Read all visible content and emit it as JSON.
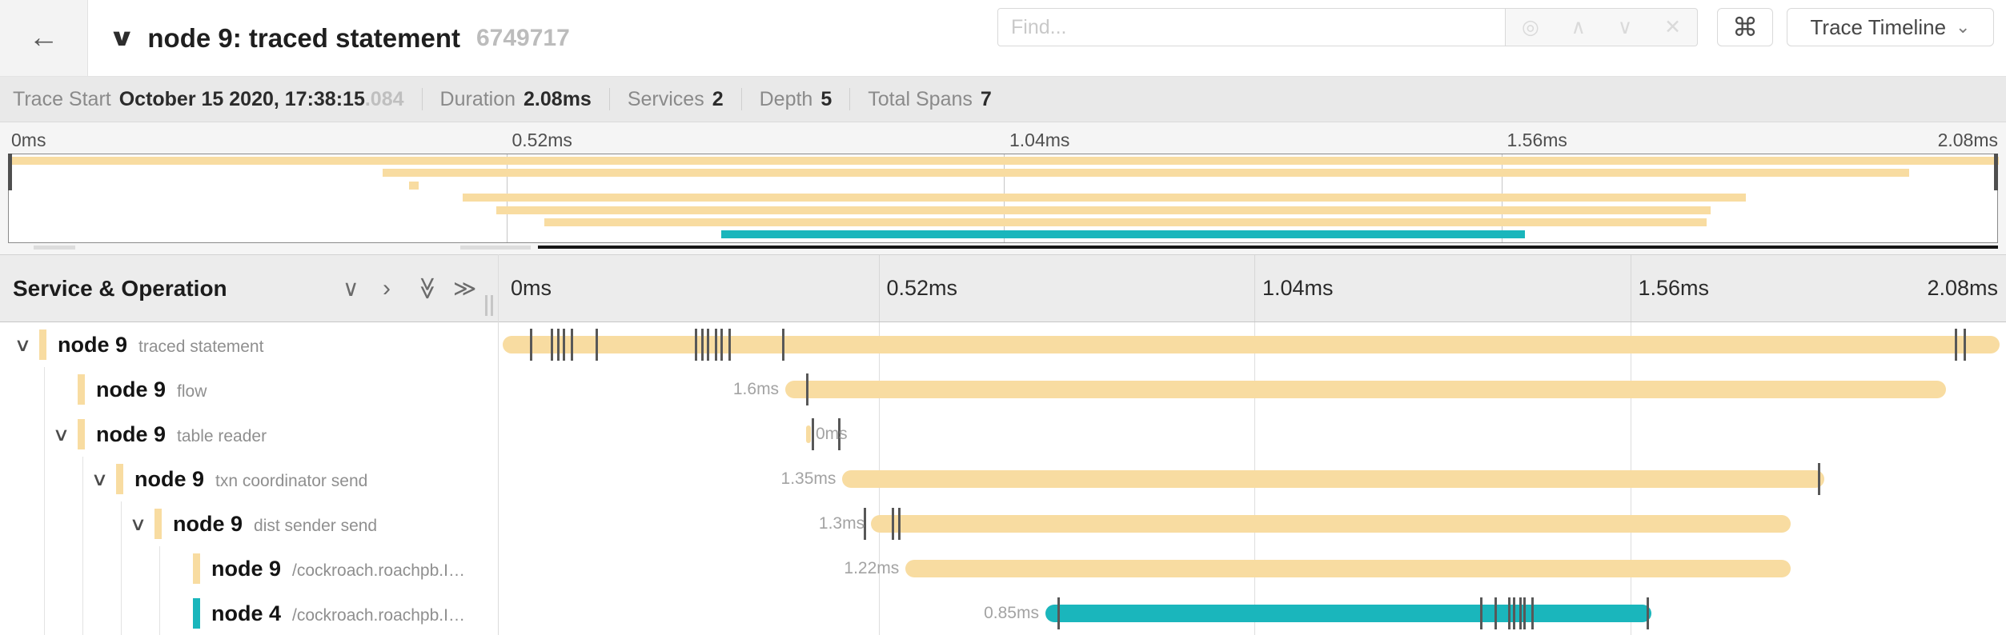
{
  "header": {
    "back_icon": "←",
    "title_collapse_icon": "∨",
    "title": "node 9: traced statement",
    "trace_id": "6749717",
    "find": {
      "placeholder": "Find...",
      "target_icon": "◎",
      "prev_icon": "∧",
      "next_icon": "∨",
      "clear_icon": "✕"
    },
    "shortcut_icon": "⌘",
    "view_dropdown": {
      "label": "Trace Timeline",
      "caret_icon": "⌄"
    }
  },
  "summary": {
    "items": [
      {
        "label": "Trace Start",
        "value": "October 15 2020, 17:38:15",
        "suffix": ".084"
      },
      {
        "label": "Duration",
        "value": "2.08ms"
      },
      {
        "label": "Services",
        "value": "2"
      },
      {
        "label": "Depth",
        "value": "5"
      },
      {
        "label": "Total Spans",
        "value": "7"
      }
    ]
  },
  "timeline": {
    "ticks": [
      "0ms",
      "0.52ms",
      "1.04ms",
      "1.56ms",
      "2.08ms"
    ],
    "tick_pcts": [
      0,
      25,
      50,
      75,
      100
    ],
    "total_duration": "2.08ms"
  },
  "controls": {
    "title": "Service & Operation",
    "collapse_one_icon": "∨",
    "expand_one_icon": "›",
    "collapse_all_icon": "≫",
    "expand_all_icon": "≫"
  },
  "colors": {
    "tan": "#F8DCA1",
    "teal": "#1AB6BC",
    "tick": "#585858"
  },
  "spans": [
    {
      "service": "node 9",
      "operation": "traced statement",
      "depth": 0,
      "has_children": true,
      "color": "tan",
      "duration_label": "",
      "label_side": "none",
      "bar": {
        "start_pct": 0,
        "end_pct": 99.6
      },
      "ticks_pct": [
        1.8,
        3.2,
        3.6,
        4.0,
        4.5,
        6.2,
        12.8,
        13.2,
        13.6,
        14.1,
        14.5,
        15.0,
        18.6,
        96.6,
        97.2
      ],
      "minimap": {
        "start_pct": 0,
        "end_pct": 100
      }
    },
    {
      "service": "node 9",
      "operation": "flow",
      "depth": 1,
      "has_children": false,
      "color": "tan",
      "duration_label": "1.6ms",
      "label_side": "left",
      "bar": {
        "start_pct": 18.8,
        "end_pct": 96.0
      },
      "ticks_pct": [
        20.2
      ],
      "minimap": {
        "start_pct": 18.8,
        "end_pct": 95.5
      }
    },
    {
      "service": "node 9",
      "operation": "table reader",
      "depth": 1,
      "has_children": true,
      "color": "tan",
      "duration_label": "0ms",
      "label_side": "right",
      "bar": {
        "start_pct": 20.2,
        "end_pct": 20.5
      },
      "ticks_pct": [
        20.55,
        22.3
      ],
      "minimap": {
        "start_pct": 20.1,
        "end_pct": 20.6
      }
    },
    {
      "service": "node 9",
      "operation": "txn coordinator send",
      "depth": 2,
      "has_children": true,
      "color": "tan",
      "duration_label": "1.35ms",
      "label_side": "left",
      "bar": {
        "start_pct": 22.6,
        "end_pct": 87.9
      },
      "ticks_pct": [
        87.5
      ],
      "minimap": {
        "start_pct": 22.8,
        "end_pct": 87.3
      }
    },
    {
      "service": "node 9",
      "operation": "dist sender send",
      "depth": 3,
      "has_children": true,
      "color": "tan",
      "duration_label": "1.3ms",
      "label_side": "left",
      "bar": {
        "start_pct": 24.5,
        "end_pct": 85.7
      },
      "ticks_pct": [
        24.0,
        25.9,
        26.3
      ],
      "minimap": {
        "start_pct": 24.5,
        "end_pct": 85.5
      }
    },
    {
      "service": "node 9",
      "operation": "/cockroach.roachpb.I…",
      "depth": 4,
      "has_children": false,
      "color": "tan",
      "duration_label": "1.22ms",
      "label_side": "left",
      "bar": {
        "start_pct": 26.8,
        "end_pct": 85.7
      },
      "ticks_pct": [],
      "minimap": {
        "start_pct": 26.9,
        "end_pct": 85.3
      }
    },
    {
      "service": "node 4",
      "operation": "/cockroach.roachpb.I…",
      "depth": 4,
      "has_children": false,
      "color": "teal",
      "duration_label": "0.85ms",
      "label_side": "left",
      "bar": {
        "start_pct": 36.1,
        "end_pct": 76.4
      },
      "ticks_pct": [
        36.9,
        65.0,
        66.0,
        66.9,
        67.2,
        67.6,
        67.9,
        68.4,
        76.1
      ],
      "minimap": {
        "start_pct": 35.8,
        "end_pct": 76.2
      }
    }
  ]
}
